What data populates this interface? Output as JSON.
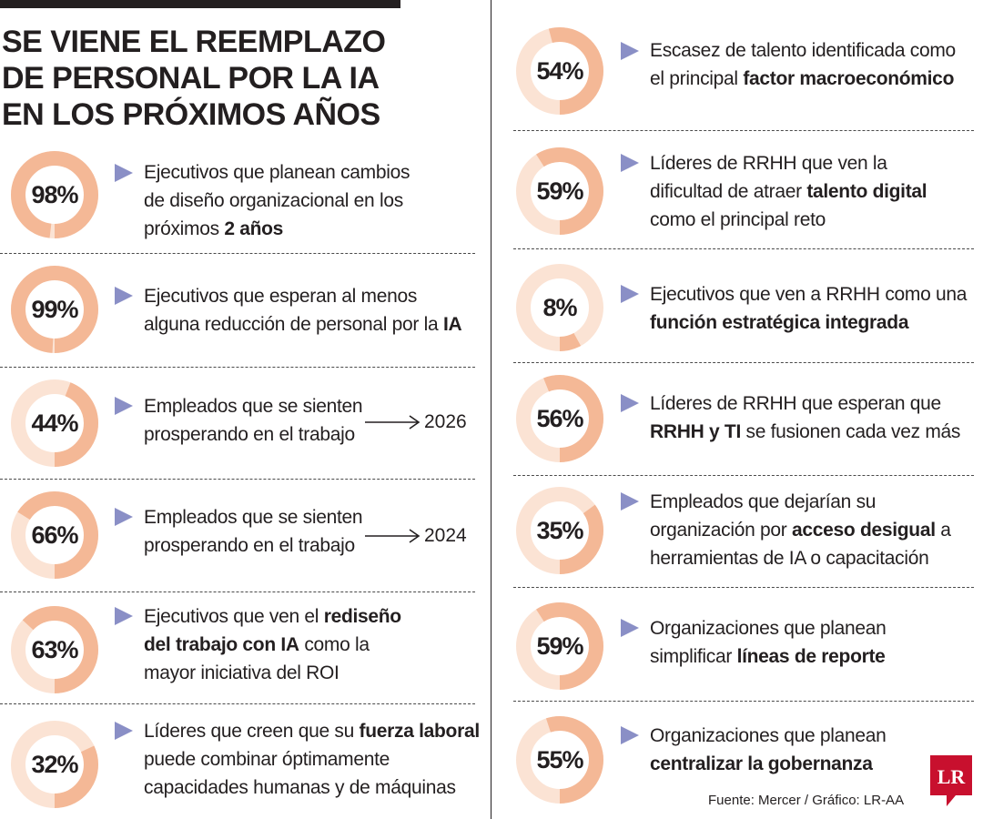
{
  "title_lines": [
    "SE VIENE EL REEMPLAZO",
    "DE PERSONAL POR LA IA",
    "EN LOS PRÓXIMOS AÑOS"
  ],
  "source": "Fuente: Mercer / Gráfico: LR-AA",
  "logo_text": "LR",
  "colors": {
    "ring_value": "#f4b896",
    "ring_remainder": "#fbe3d4",
    "bullet": "#8a8fc6",
    "logo_red": "#c8102e",
    "text": "#231f20"
  },
  "items": [
    {
      "label": "98%",
      "value": 98,
      "parts": [
        [
          "Ejecutivos que planean cambios",
          false
        ],
        [
          "\n",
          false
        ],
        [
          "de diseño organizacional en los",
          false
        ],
        [
          "\n",
          false
        ],
        [
          "próximos ",
          false
        ],
        [
          "2 años",
          true
        ]
      ]
    },
    {
      "label": "99%",
      "value": 99,
      "parts": [
        [
          "Ejecutivos que esperan al menos",
          false
        ],
        [
          "\n",
          false
        ],
        [
          "alguna reducción de personal por la ",
          false
        ],
        [
          "IA",
          true
        ]
      ]
    },
    {
      "label": "44%",
      "value": 44,
      "parts": [
        [
          "Empleados que se sienten",
          false
        ],
        [
          "\n",
          false
        ],
        [
          "prosperando en el trabajo",
          false
        ]
      ],
      "year": "2026"
    },
    {
      "label": "66%",
      "value": 66,
      "parts": [
        [
          "Empleados que se sienten",
          false
        ],
        [
          "\n",
          false
        ],
        [
          "prosperando en el trabajo",
          false
        ]
      ],
      "year": "2024"
    },
    {
      "label": "63%",
      "value": 63,
      "parts": [
        [
          "Ejecutivos que ven el ",
          false
        ],
        [
          "rediseño",
          true
        ],
        [
          "\n",
          false
        ],
        [
          "del trabajo con IA",
          true
        ],
        [
          " como la",
          false
        ],
        [
          "\n",
          false
        ],
        [
          "mayor iniciativa del ROI",
          false
        ]
      ]
    },
    {
      "label": "32%",
      "value": 32,
      "parts": [
        [
          "Líderes que creen que su ",
          false
        ],
        [
          "fuerza laboral",
          true
        ],
        [
          "\n",
          false
        ],
        [
          "puede combinar óptimamente",
          false
        ],
        [
          "\n",
          false
        ],
        [
          "capacidades humanas y de máquinas",
          false
        ]
      ]
    },
    {
      "label": "54%",
      "value": 54,
      "parts": [
        [
          "Escasez de talento identificada como",
          false
        ],
        [
          "\n",
          false
        ],
        [
          "el principal ",
          false
        ],
        [
          "factor macroeconómico",
          true
        ]
      ]
    },
    {
      "label": "59%",
      "value": 59,
      "parts": [
        [
          "Líderes de RRHH que ven la",
          false
        ],
        [
          "\n",
          false
        ],
        [
          "dificultad de atraer ",
          false
        ],
        [
          "talento digital",
          true
        ],
        [
          "\n",
          false
        ],
        [
          "como el principal reto",
          false
        ]
      ]
    },
    {
      "label": "8%",
      "value": 8,
      "parts": [
        [
          "Ejecutivos que ven a RRHH como una",
          false
        ],
        [
          "\n",
          false
        ],
        [
          "función estratégica integrada",
          true
        ]
      ]
    },
    {
      "label": "56%",
      "value": 56,
      "parts": [
        [
          "Líderes de RRHH que esperan que",
          false
        ],
        [
          "\n",
          false
        ],
        [
          "RRHH y TI",
          true
        ],
        [
          " se fusionen cada vez más",
          false
        ]
      ]
    },
    {
      "label": "35%",
      "value": 35,
      "parts": [
        [
          "Empleados que dejarían su",
          false
        ],
        [
          "\n",
          false
        ],
        [
          "organización por ",
          false
        ],
        [
          "acceso desigual",
          true
        ],
        [
          " a",
          false
        ],
        [
          "\n",
          false
        ],
        [
          "herramientas de IA o capacitación",
          false
        ]
      ]
    },
    {
      "label": "59%",
      "value": 59,
      "parts": [
        [
          "Organizaciones que planean",
          false
        ],
        [
          "\n",
          false
        ],
        [
          "simplificar ",
          false
        ],
        [
          "líneas de reporte",
          true
        ]
      ]
    },
    {
      "label": "55%",
      "value": 55,
      "parts": [
        [
          "Organizaciones que planean",
          false
        ],
        [
          "\n",
          false
        ],
        [
          "centralizar la gobernanza",
          true
        ]
      ]
    }
  ],
  "chart_data": {
    "type": "pie",
    "title": "SE VIENE EL REEMPLAZO DE PERSONAL POR LA IA EN LOS PRÓXIMOS AÑOS",
    "categories": [
      "Ejecutivos que planean cambios de diseño organizacional en los próximos 2 años",
      "Ejecutivos que esperan al menos alguna reducción de personal por la IA",
      "Empleados que se sienten prosperando en el trabajo 2026",
      "Empleados que se sienten prosperando en el trabajo 2024",
      "Ejecutivos que ven el rediseño del trabajo con IA como la mayor iniciativa del ROI",
      "Líderes que creen que su fuerza laboral puede combinar óptimamente capacidades humanas y de máquinas",
      "Escasez de talento identificada como el principal factor macroeconómico",
      "Líderes de RRHH que ven la dificultad de atraer talento digital como el principal reto",
      "Ejecutivos que ven a RRHH como una función estratégica integrada",
      "Líderes de RRHH que esperan que RRHH y TI se fusionen cada vez más",
      "Empleados que dejarían su organización por acceso desigual a herramientas de IA o capacitación",
      "Organizaciones que planean simplificar líneas de reporte",
      "Organizaciones que planean centralizar la gobernanza"
    ],
    "values": [
      98,
      99,
      44,
      66,
      63,
      32,
      54,
      59,
      8,
      56,
      35,
      59,
      55
    ],
    "unit": "%"
  }
}
